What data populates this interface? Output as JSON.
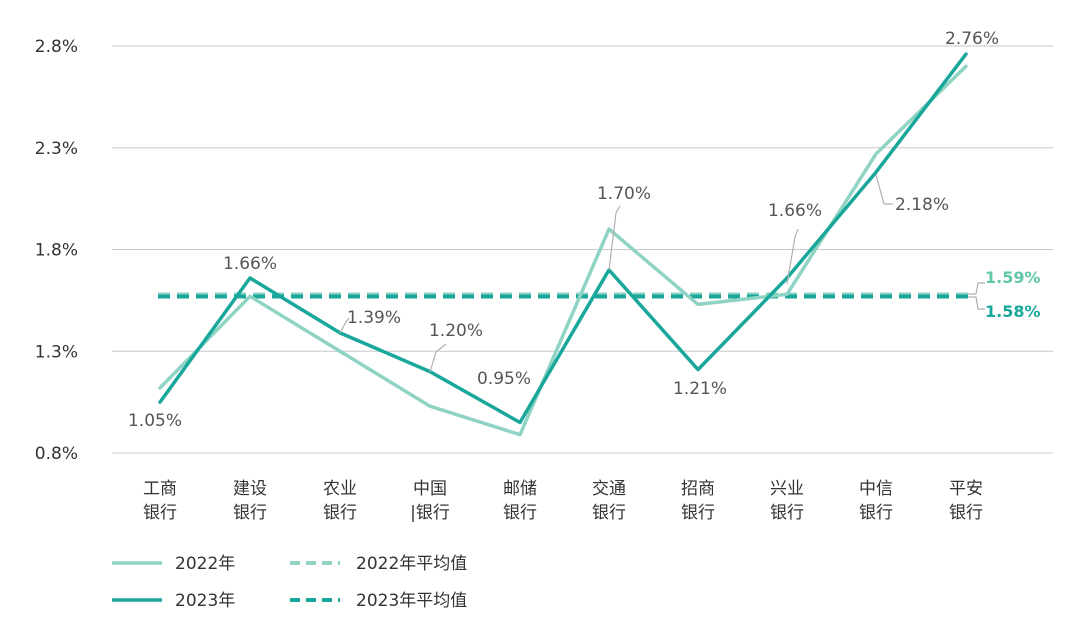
{
  "chart_data": {
    "type": "line",
    "categories": [
      [
        "工商",
        "银行"
      ],
      [
        "建设",
        "银行"
      ],
      [
        "农业",
        "银行"
      ],
      [
        "中国",
        "|银行"
      ],
      [
        "邮储",
        "银行"
      ],
      [
        "交通",
        "银行"
      ],
      [
        "招商",
        "银行"
      ],
      [
        "兴业",
        "银行"
      ],
      [
        "中信",
        "银行"
      ],
      [
        "平安",
        "银行"
      ]
    ],
    "yticks": [
      "2.8%",
      "2.3%",
      "1.8%",
      "1.3%",
      "0.8%"
    ],
    "ylim": [
      0.8,
      2.8
    ],
    "grid": true,
    "series": [
      {
        "name": "2022年",
        "color": "#8fd3c4",
        "values": [
          1.12,
          1.57,
          1.3,
          1.03,
          0.89,
          1.9,
          1.53,
          1.58,
          2.27,
          2.7
        ]
      },
      {
        "name": "2023年",
        "color": "#18a79a",
        "values": [
          1.05,
          1.66,
          1.39,
          1.2,
          0.95,
          1.7,
          1.21,
          1.66,
          2.18,
          2.76
        ]
      }
    ],
    "averages": [
      {
        "name": "2022年平均值",
        "value": 1.59,
        "label": "1.59%",
        "color": "#8fd3c4",
        "text_color": "#5fc7a8"
      },
      {
        "name": "2023年平均值",
        "value": 1.58,
        "label": "1.58%",
        "color": "#18a79a",
        "text_color": "#18a79a"
      }
    ],
    "data_labels": [
      "1.05%",
      "1.66%",
      "1.39%",
      "1.20%",
      "0.95%",
      "1.70%",
      "1.21%",
      "1.66%",
      "2.18%",
      "2.76%"
    ],
    "legend": [
      "2022年",
      "2022年平均值",
      "2023年",
      "2023年平均值"
    ]
  }
}
